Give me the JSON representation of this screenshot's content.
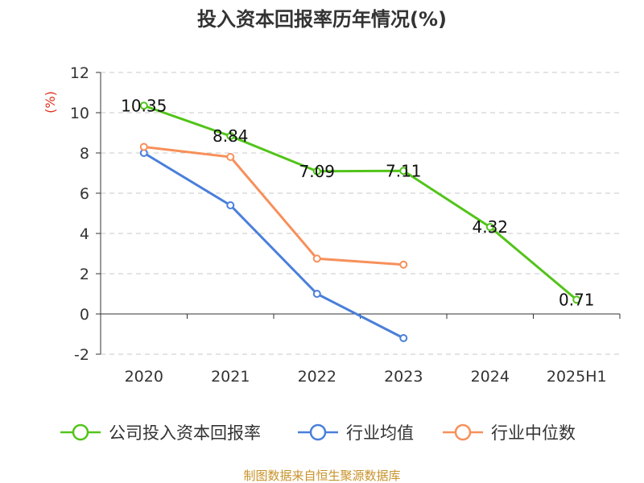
{
  "chart_data": {
    "type": "line",
    "title": "投入资本回报率历年情况(%)",
    "ylabel": "(%)",
    "xlabel": "",
    "categories": [
      "2020",
      "2021",
      "2022",
      "2023",
      "2024",
      "2025H1"
    ],
    "ylim": [
      -2,
      12
    ],
    "yticks": [
      -2,
      0,
      2,
      4,
      6,
      8,
      10,
      12
    ],
    "grid": true,
    "legend_position": "bottom",
    "series": [
      {
        "name": "公司投入资本回报率",
        "color": "#52c41a",
        "values": [
          10.35,
          8.84,
          7.09,
          7.11,
          4.32,
          0.71
        ],
        "labels": [
          "10.35",
          "8.84",
          "7.09",
          "7.11",
          "4.32",
          "0.71"
        ]
      },
      {
        "name": "行业均值",
        "color": "#4a7fdb",
        "values": [
          8.0,
          5.4,
          1.0,
          -1.2,
          null,
          null
        ]
      },
      {
        "name": "行业中位数",
        "color": "#f7905a",
        "values": [
          8.3,
          7.8,
          2.75,
          2.45,
          null,
          null
        ]
      }
    ]
  },
  "source": "制图数据来自恒生聚源数据库"
}
